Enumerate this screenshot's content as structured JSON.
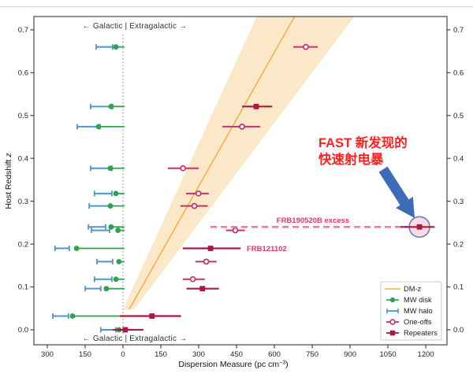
{
  "figure": {
    "ylabel_main": "Host Redshift ",
    "ylabel_var": "z",
    "xlabel_pre": "Dispersion Measure (pc cm",
    "xlabel_sup": "−3",
    "xlabel_post": ")",
    "boundary_top": "←  Galactic | Extragalactic  →",
    "boundary_bottom": "←  Galactic | Extragalactic  →",
    "annotation_fast_line1": "FAST 新发现的",
    "annotation_fast_line2": "快速射电暴",
    "label_frb190520b": "FRB190520B excess",
    "label_frb121102": "FRB121102",
    "colors": {
      "fast_red": "#FF2121",
      "frb_pink": "#E8356B",
      "boundary_gray": "#333333",
      "arrow_blue": "#3D6CB8",
      "dashed_pink": "#F27BA5",
      "highlight_fill": "#F6D6DD",
      "highlight_ring": "#647FC6",
      "border_gray": "#555555",
      "zero_line_gray": "#8a8a8a",
      "top_divider": "#d8d8d8"
    }
  },
  "chart_data": {
    "type": "scatter",
    "title": "",
    "xlabel": "Dispersion Measure (pc cm⁻³)",
    "ylabel": "Host Redshift z",
    "xlim": [
      -353,
      1284
    ],
    "ylim": [
      -0.035,
      0.731
    ],
    "grid": false,
    "x_ticks": [
      {
        "v": -300,
        "label": "300"
      },
      {
        "v": -150,
        "label": "150"
      },
      {
        "v": 0,
        "label": "0"
      },
      {
        "v": 150,
        "label": "150"
      },
      {
        "v": 300,
        "label": "300"
      },
      {
        "v": 450,
        "label": "450"
      },
      {
        "v": 600,
        "label": "600"
      },
      {
        "v": 750,
        "label": "750"
      },
      {
        "v": 900,
        "label": "900"
      },
      {
        "v": 1050,
        "label": "1050"
      },
      {
        "v": 1200,
        "label": "1200"
      }
    ],
    "y_ticks": [
      {
        "v": 0.0,
        "label": "0.0"
      },
      {
        "v": 0.1,
        "label": "0.1"
      },
      {
        "v": 0.2,
        "label": "0.2"
      },
      {
        "v": 0.3,
        "label": "0.3"
      },
      {
        "v": 0.4,
        "label": "0.4"
      },
      {
        "v": 0.5,
        "label": "0.5"
      },
      {
        "v": 0.6,
        "label": "0.6"
      },
      {
        "v": 0.7,
        "label": "0.7"
      }
    ],
    "series": [
      {
        "name": "DM-z",
        "type": "line",
        "color": "#F5A93F",
        "band_color": "#FBE8C9",
        "line": [
          {
            "z": 0.048,
            "dm": 25
          },
          {
            "z": 0.731,
            "dm": 680
          }
        ],
        "band": [
          {
            "z": 0.048,
            "dm": 0
          },
          {
            "z": 0.731,
            "dm": 530
          },
          {
            "z": 0.731,
            "dm": 917
          },
          {
            "z": 0.048,
            "dm": 45
          }
        ]
      },
      {
        "name": "MW disk",
        "type": "scatter",
        "marker": "dot",
        "color": "#2FA34C",
        "line_to_zero": true,
        "points": [
          {
            "z": 0.66,
            "dm": -28
          },
          {
            "z": 0.521,
            "dm": -47
          },
          {
            "z": 0.474,
            "dm": -97
          },
          {
            "z": 0.377,
            "dm": -50
          },
          {
            "z": 0.318,
            "dm": -28
          },
          {
            "z": 0.289,
            "dm": -50
          },
          {
            "z": 0.24,
            "dm": -47
          },
          {
            "z": 0.232,
            "dm": -20
          },
          {
            "z": 0.19,
            "dm": -184
          },
          {
            "z": 0.159,
            "dm": -16
          },
          {
            "z": 0.118,
            "dm": -28
          },
          {
            "z": 0.096,
            "dm": -66
          },
          {
            "z": 0.032,
            "dm": -200
          },
          {
            "z": 0.0,
            "dm": -16
          }
        ]
      },
      {
        "name": "MW halo",
        "type": "errorbar",
        "color": "#4F96CC",
        "points": [
          {
            "z": 0.66,
            "lo": -106,
            "hi": -41
          },
          {
            "z": 0.521,
            "lo": -128,
            "hi": -41
          },
          {
            "z": 0.474,
            "lo": -181,
            "hi": -91
          },
          {
            "z": 0.377,
            "lo": -128,
            "hi": -44
          },
          {
            "z": 0.318,
            "lo": -113,
            "hi": -44
          },
          {
            "z": 0.289,
            "lo": -134,
            "hi": -50
          },
          {
            "z": 0.24,
            "lo": -137,
            "hi": -69
          },
          {
            "z": 0.232,
            "lo": -125,
            "hi": -53
          },
          {
            "z": 0.19,
            "lo": -269,
            "hi": -213
          },
          {
            "z": 0.159,
            "lo": -103,
            "hi": -41
          },
          {
            "z": 0.118,
            "lo": -113,
            "hi": -44
          },
          {
            "z": 0.096,
            "lo": -150,
            "hi": -88
          },
          {
            "z": 0.032,
            "lo": -278,
            "hi": -216
          },
          {
            "z": 0.0,
            "lo": -88,
            "hi": -28
          }
        ]
      },
      {
        "name": "One-offs",
        "type": "scatter",
        "marker": "open-circle",
        "color": "#C5316A",
        "points": [
          {
            "z": 0.66,
            "dm": 725,
            "lo": 675,
            "hi": 772
          },
          {
            "z": 0.474,
            "dm": 472,
            "lo": 394,
            "hi": 544
          },
          {
            "z": 0.377,
            "dm": 238,
            "lo": 178,
            "hi": 300
          },
          {
            "z": 0.318,
            "dm": 299,
            "lo": 250,
            "hi": 340
          },
          {
            "z": 0.289,
            "dm": 283,
            "lo": 228,
            "hi": 336
          },
          {
            "z": 0.232,
            "dm": 445,
            "lo": 408,
            "hi": 483
          },
          {
            "z": 0.159,
            "dm": 330,
            "lo": 287,
            "hi": 371
          },
          {
            "z": 0.118,
            "dm": 277,
            "lo": 237,
            "hi": 324
          }
        ]
      },
      {
        "name": "Repeaters",
        "type": "scatter",
        "marker": "square",
        "color": "#AB1743",
        "points": [
          {
            "z": 0.521,
            "dm": 528,
            "lo": 472,
            "hi": 591
          },
          {
            "z": 0.24,
            "dm": 1175,
            "lo": 1100,
            "hi": 1235,
            "highlight": true,
            "note": "FRB190520B"
          },
          {
            "z": 0.19,
            "dm": 347,
            "lo": 237,
            "hi": 466,
            "note": "FRB121102"
          },
          {
            "z": 0.096,
            "dm": 315,
            "lo": 252,
            "hi": 380
          },
          {
            "z": 0.032,
            "dm": 115,
            "lo": -12,
            "hi": 230
          },
          {
            "z": 0.0,
            "dm": 9,
            "lo": -40,
            "hi": 81
          }
        ]
      }
    ],
    "annotations": {
      "dashed_excess_line": {
        "z": 0.24,
        "dm_from": 347,
        "dm_to": 1128
      },
      "highlight_circle": {
        "z": 0.24,
        "dm": 1175,
        "radius_px": 13
      },
      "zero_reference_line": {
        "dm": 0
      }
    },
    "legend": {
      "position": "lower right",
      "items": [
        {
          "label": "DM-z",
          "marker": "line",
          "color": "#F9C46B"
        },
        {
          "label": "MW disk",
          "marker": "dot-line",
          "color": "#2FA34C"
        },
        {
          "label": "MW halo",
          "marker": "errorbar",
          "color": "#4F96CC"
        },
        {
          "label": "One-offs",
          "marker": "open-circle",
          "color": "#C5316A"
        },
        {
          "label": "Repeaters",
          "marker": "square",
          "color": "#AB1743"
        }
      ]
    }
  }
}
